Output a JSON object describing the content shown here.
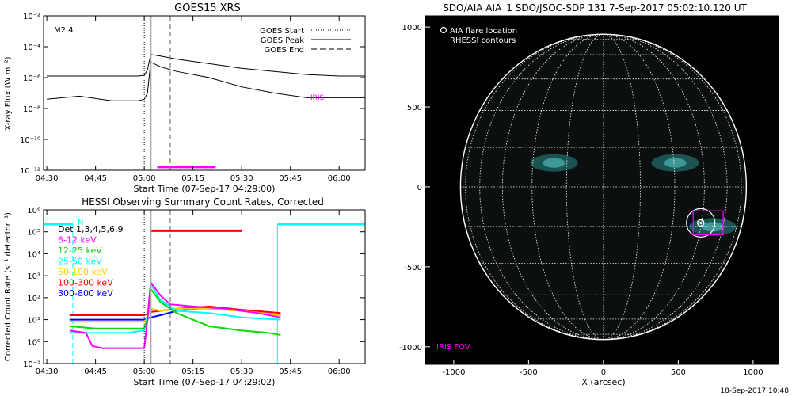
{
  "footer_date": "18-Sep-2017 10:48",
  "chart_data": [
    {
      "type": "line",
      "title": "GOES15 XRS",
      "xlabel": "Start Time (07-Sep-17 04:29:00)",
      "ylabel": "X-ray Flux (W m⁻²)",
      "scale_y": "log",
      "x_tick_labels": [
        "04:30",
        "04:45",
        "05:00",
        "05:15",
        "05:30",
        "05:45",
        "06:00"
      ],
      "y_tick_labels": [
        "10⁻¹²",
        "10⁻¹⁰",
        "10⁻⁸",
        "10⁻⁶",
        "10⁻⁴",
        "10⁻²"
      ],
      "annotation_class": "M2.4",
      "annotation_iris": "IRIS",
      "legend": [
        "GOES Start",
        "GOES Peak",
        "GOES End"
      ],
      "markers": {
        "start": "05:00",
        "peak": "05:02",
        "end": "05:08"
      },
      "iris_interval": [
        "05:04",
        "05:22"
      ],
      "iris_level": -11.8,
      "series": [
        {
          "x": [
            "04:30",
            "04:40",
            "04:50",
            "04:58",
            "05:00",
            "05:01",
            "05:02",
            "05:05",
            "05:10",
            "05:20",
            "05:30",
            "05:40",
            "05:50",
            "06:00",
            "06:08"
          ],
          "log10_flux": [
            -5.9,
            -5.9,
            -5.9,
            -5.9,
            -5.85,
            -5.5,
            -4.5,
            -4.6,
            -4.8,
            -5.1,
            -5.4,
            -5.6,
            -5.8,
            -5.9,
            -5.9
          ]
        },
        {
          "x": [
            "04:30",
            "04:40",
            "04:50",
            "04:58",
            "05:00",
            "05:01",
            "05:02",
            "05:05",
            "05:10",
            "05:20",
            "05:30",
            "05:40",
            "05:50",
            "06:00",
            "06:08"
          ],
          "log10_flux": [
            -7.4,
            -7.2,
            -7.5,
            -7.5,
            -7.4,
            -7.0,
            -5.0,
            -5.3,
            -5.6,
            -6.0,
            -6.6,
            -7.0,
            -7.3,
            -7.3,
            -7.3
          ]
        }
      ]
    },
    {
      "type": "line",
      "title": "HESSI Observing Summary Count Rates, Corrected",
      "xlabel": "Start Time (07-Sep-17 04:29:02)",
      "ylabel": "Corrected Count Rate (s⁻¹ detector⁻¹)",
      "scale_y": "log",
      "x_tick_labels": [
        "04:30",
        "04:45",
        "05:00",
        "05:15",
        "05:30",
        "05:45",
        "06:00"
      ],
      "y_tick_labels": [
        "10⁻¹",
        "10⁰",
        "10¹",
        "10²",
        "10³",
        "10⁴",
        "10⁵",
        "10⁶"
      ],
      "legend": [
        "Det 1,3,4,5,6,9",
        "6-12 keV",
        "12-25 keV",
        "25-50 keV",
        "50-100 keV",
        "100-300 keV",
        "300-800 keV"
      ],
      "legend_colors": [
        "#000000",
        "#ff00ff",
        "#00dd00",
        "#00ffff",
        "#ffcc00",
        "#ff0000",
        "#0000ff"
      ],
      "annotation_n": "N",
      "markers": {
        "start": "05:00",
        "peak": "05:02",
        "end": "05:08"
      },
      "attenuator_bar": {
        "x": [
          "05:02",
          "05:30"
        ],
        "log10_value": 5.05,
        "color": "#ff0000"
      },
      "night_bars": [
        {
          "x": [
            "04:29",
            "04:38"
          ],
          "log10_value": 5.35
        },
        {
          "x": [
            "05:41",
            "06:08"
          ],
          "log10_value": 5.35
        }
      ],
      "series": [
        {
          "name": "6-12 keV",
          "color": "#ff00ff",
          "x": [
            "04:37",
            "04:42",
            "04:44",
            "04:47",
            "04:55",
            "05:00",
            "05:01",
            "05:02",
            "05:05",
            "05:08",
            "05:15",
            "05:25",
            "05:35",
            "05:42"
          ],
          "log10_value": [
            0.5,
            0.4,
            -0.2,
            -0.3,
            -0.3,
            -0.3,
            1.0,
            2.7,
            2.1,
            1.7,
            1.6,
            1.5,
            1.3,
            1.1
          ]
        },
        {
          "name": "12-25 keV",
          "color": "#00dd00",
          "x": [
            "04:37",
            "04:45",
            "04:55",
            "05:00",
            "05:01",
            "05:02",
            "05:05",
            "05:10",
            "05:20",
            "05:30",
            "05:38",
            "05:42"
          ],
          "log10_value": [
            0.7,
            0.6,
            0.6,
            0.6,
            1.0,
            2.4,
            1.8,
            1.3,
            0.7,
            0.5,
            0.4,
            0.3
          ]
        },
        {
          "name": "25-50 keV",
          "color": "#00ffff",
          "x": [
            "04:37",
            "04:45",
            "04:55",
            "05:00",
            "05:01",
            "05:02",
            "05:05",
            "05:10",
            "05:20",
            "05:30",
            "05:42"
          ],
          "log10_value": [
            0.4,
            0.4,
            0.4,
            0.5,
            1.2,
            2.6,
            1.9,
            1.4,
            1.3,
            1.1,
            1.0
          ]
        },
        {
          "name": "50-100 keV",
          "color": "#ffcc00",
          "x": [
            "04:37",
            "04:45",
            "04:55",
            "05:00",
            "05:01",
            "05:02",
            "05:05",
            "05:10",
            "05:20",
            "05:30",
            "05:42"
          ],
          "log10_value": [
            0.9,
            0.9,
            0.9,
            0.9,
            1.1,
            1.5,
            1.4,
            1.5,
            1.5,
            1.4,
            1.2
          ]
        },
        {
          "name": "100-300 keV",
          "color": "#ff0000",
          "x": [
            "04:37",
            "04:45",
            "04:55",
            "05:00",
            "05:02",
            "05:05",
            "05:10",
            "05:20",
            "05:30",
            "05:42"
          ],
          "log10_value": [
            1.2,
            1.2,
            1.2,
            1.2,
            1.35,
            1.4,
            1.5,
            1.6,
            1.45,
            1.3
          ]
        },
        {
          "name": "300-800 keV",
          "color": "#0000ff",
          "x": [
            "04:37",
            "04:45",
            "04:55",
            "05:00",
            "05:02",
            "05:05",
            "05:10",
            "05:20",
            "05:30",
            "05:42"
          ],
          "log10_value": [
            1.0,
            1.0,
            1.0,
            1.0,
            1.1,
            1.2,
            1.4,
            1.55,
            1.4,
            1.2
          ]
        }
      ]
    },
    {
      "type": "scatter",
      "title": "SDO/AIA AIA_1 SDO/JSOC-SDP 131   7-Sep-2017 05:02:10.120 UT",
      "xlabel": "X (arcsec)",
      "ylabel": "",
      "x_ticks": [
        -1000,
        -500,
        0,
        500,
        1000
      ],
      "y_ticks": [
        -1000,
        -500,
        0,
        500,
        1000
      ],
      "xlim": [
        -1190,
        1170
      ],
      "ylim": [
        -1110,
        1070
      ],
      "legend": [
        "AIA flare location",
        "RHESSI contours"
      ],
      "annotation_iris": "IRIS FOV",
      "solar_radius_arcsec": 955,
      "flare_location": {
        "x": 650,
        "y": -225
      },
      "iris_fov": {
        "x": [
          600,
          800
        ],
        "y": [
          -300,
          -150
        ]
      },
      "active_regions": [
        {
          "x": -330,
          "y": 150
        },
        {
          "x": 480,
          "y": 150
        },
        {
          "x": 730,
          "y": -250
        }
      ]
    }
  ]
}
